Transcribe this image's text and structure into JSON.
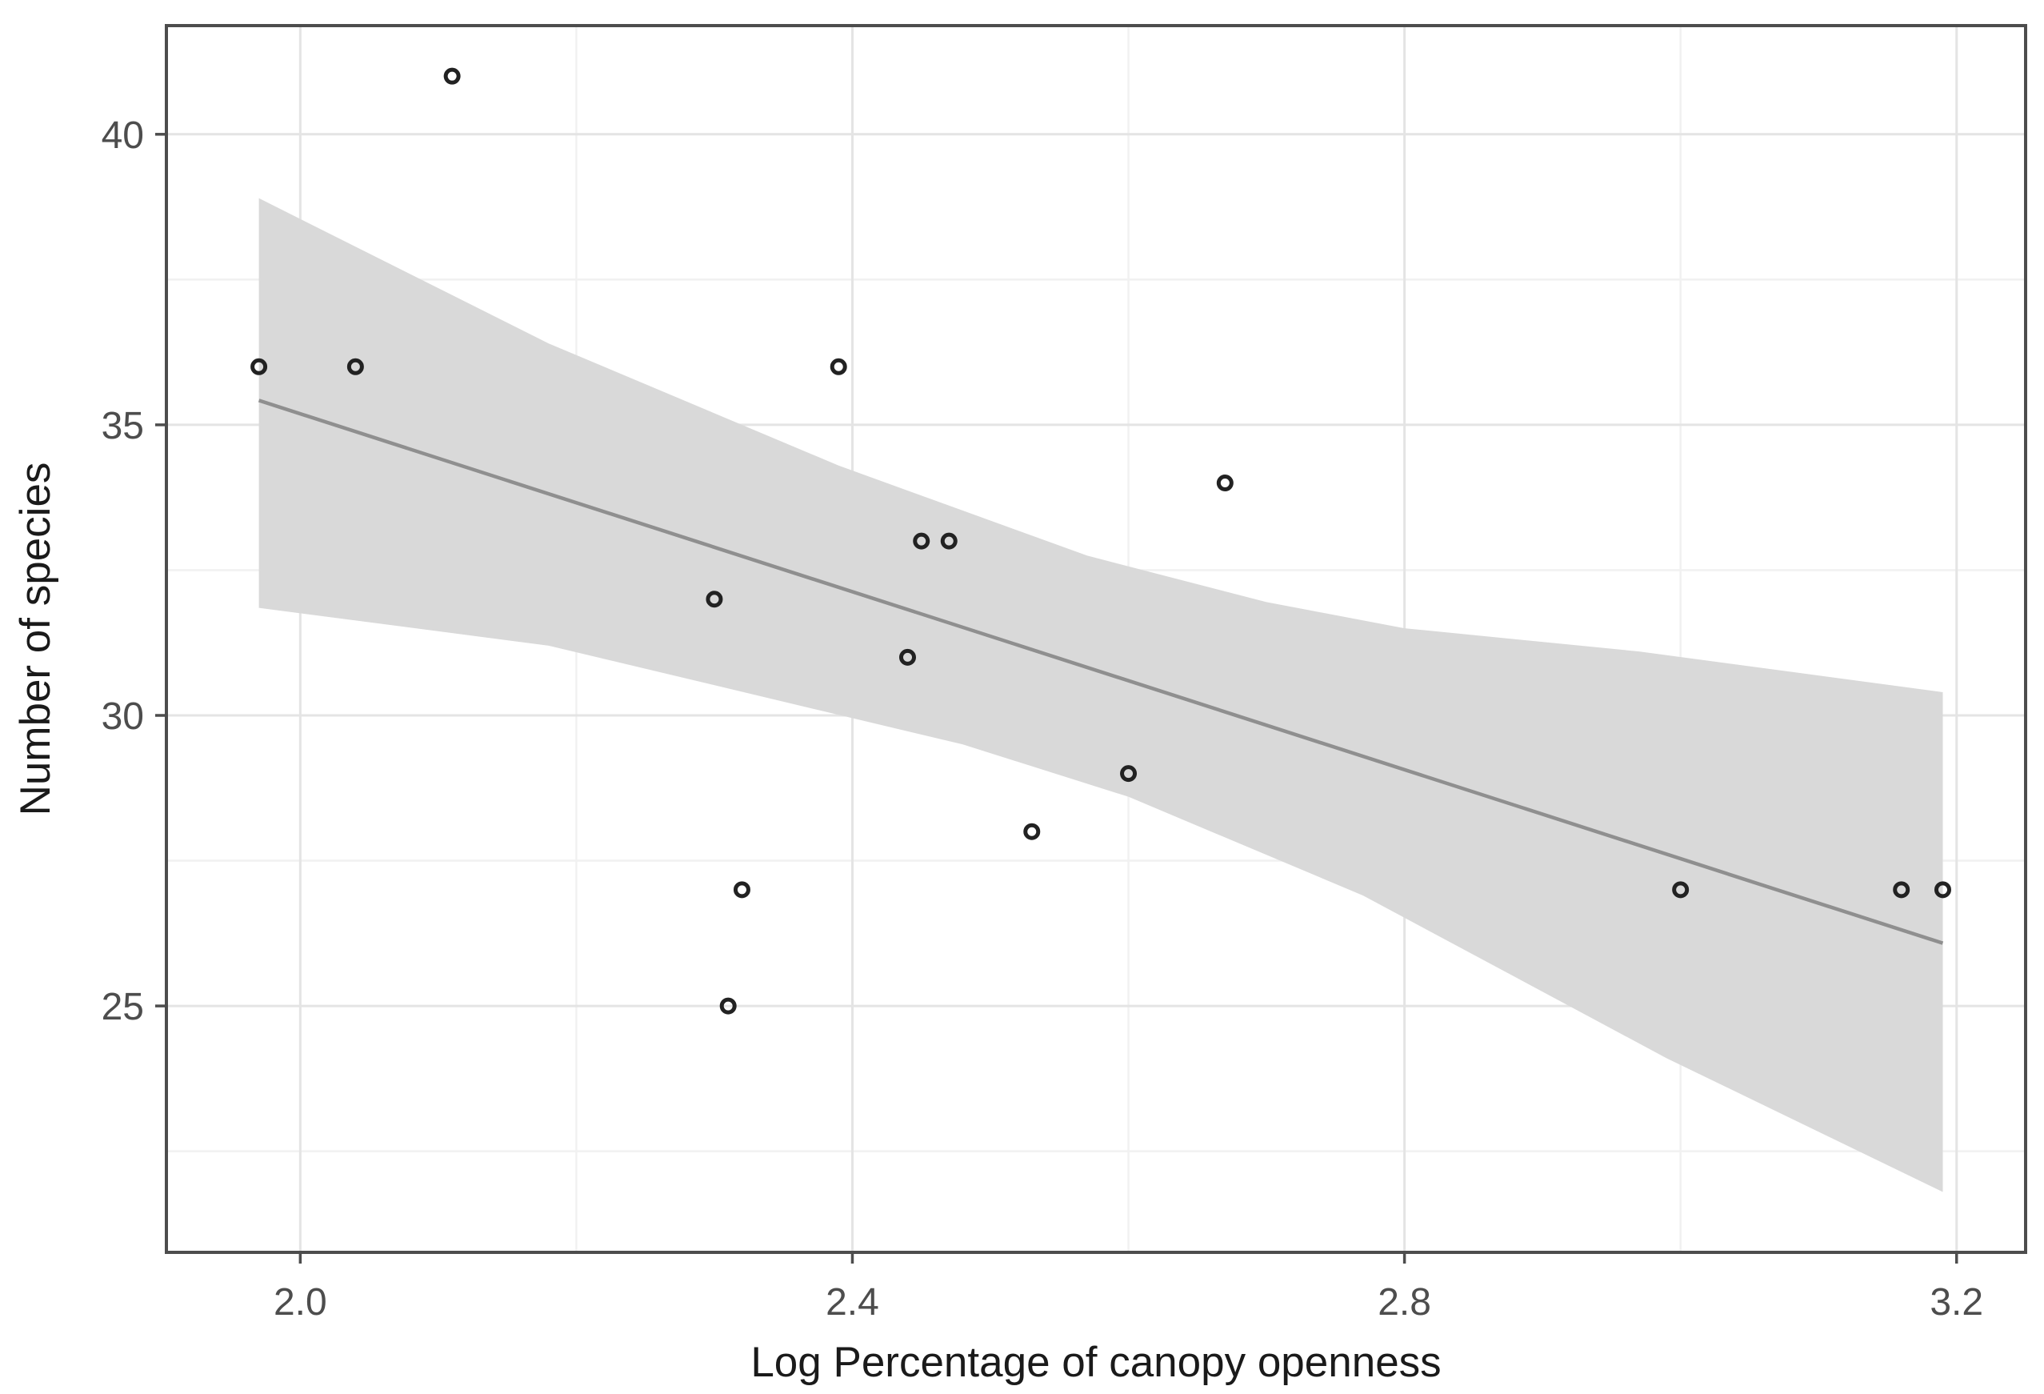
{
  "chart_data": {
    "type": "scatter",
    "title": "",
    "xlabel": "Log Percentage of canopy openness",
    "ylabel": "Number of species",
    "xlim": [
      1.903,
      3.25
    ],
    "ylim": [
      20.76,
      41.87
    ],
    "grid": true,
    "legend": false,
    "x_major_ticks": [
      2.0,
      2.4,
      2.8,
      3.2
    ],
    "x_tick_labels": [
      "2.0",
      "2.4",
      "2.8",
      "3.2"
    ],
    "x_minor_ticks": [
      2.2,
      2.6,
      3.0
    ],
    "y_major_ticks": [
      25,
      30,
      35,
      40
    ],
    "y_tick_labels": [
      "25",
      "30",
      "35",
      "40"
    ],
    "y_minor_ticks": [
      22.5,
      27.5,
      32.5,
      37.5
    ],
    "points": [
      [
        1.97,
        36
      ],
      [
        2.04,
        36
      ],
      [
        2.11,
        41
      ],
      [
        2.3,
        32
      ],
      [
        2.31,
        25
      ],
      [
        2.32,
        27
      ],
      [
        2.39,
        36
      ],
      [
        2.44,
        31
      ],
      [
        2.45,
        33
      ],
      [
        2.47,
        33
      ],
      [
        2.53,
        28
      ],
      [
        2.6,
        29
      ],
      [
        2.67,
        34
      ],
      [
        3.0,
        27
      ],
      [
        3.16,
        27
      ],
      [
        3.19,
        27
      ]
    ],
    "regression_line": {
      "x1": 1.97,
      "y1": 35.42,
      "x2": 3.19,
      "y2": 26.08
    },
    "confidence_band": {
      "top": [
        [
          1.97,
          38.9
        ],
        [
          2.18,
          36.4
        ],
        [
          2.39,
          34.3
        ],
        [
          2.57,
          32.75
        ],
        [
          2.7,
          31.95
        ],
        [
          2.8,
          31.5
        ],
        [
          2.97,
          31.1
        ],
        [
          3.08,
          30.75
        ],
        [
          3.19,
          30.4
        ]
      ],
      "bottom": [
        [
          1.97,
          31.85
        ],
        [
          2.18,
          31.2
        ],
        [
          2.48,
          29.5
        ],
        [
          2.6,
          28.6
        ],
        [
          2.77,
          26.9
        ],
        [
          2.99,
          24.1
        ],
        [
          3.19,
          21.8
        ]
      ]
    },
    "colors": {
      "background": "#ffffff",
      "panel_border": "#4d4d4d",
      "grid_major": "#e4e4e4",
      "grid_minor": "#f1f1f1",
      "band": "#d9d9d9",
      "line": "#8f8f8f",
      "point_stroke": "#222222",
      "tick_text": "#4d4d4d",
      "title_text": "#1a1a1a"
    },
    "marker": {
      "shape": "open-circle",
      "radius": 8,
      "stroke_width": 5
    }
  }
}
